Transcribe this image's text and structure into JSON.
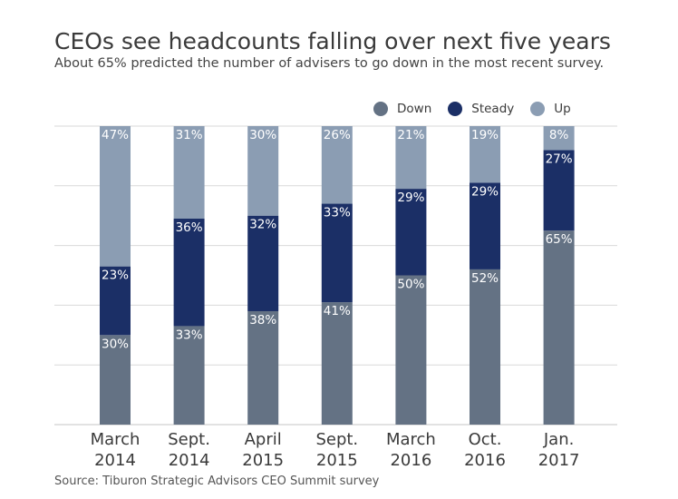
{
  "title": "CEOs see headcounts falling over next five years",
  "subtitle": "About 65% predicted the number of advisers to go down in the most recent survey.",
  "source": "Source: Tiburon Strategic Advisors CEO Summit survey",
  "colors": {
    "Down": "#647284",
    "Steady": "#1b2f66",
    "Up": "#8b9db3",
    "grid": "#d9d9d9"
  },
  "legend": [
    {
      "name": "Down",
      "color": "#647284"
    },
    {
      "name": "Steady",
      "color": "#1b2f66"
    },
    {
      "name": "Up",
      "color": "#8b9db3"
    }
  ],
  "chart_data": {
    "type": "bar",
    "stacked": true,
    "orientation": "vertical",
    "categories": [
      [
        "March",
        "2014"
      ],
      [
        "Sept.",
        "2014"
      ],
      [
        "April",
        "2015"
      ],
      [
        "Sept.",
        "2015"
      ],
      [
        "March",
        "2016"
      ],
      [
        "Oct.",
        "2016"
      ],
      [
        "Jan.",
        "2017"
      ]
    ],
    "series": [
      {
        "name": "Down",
        "values": [
          30,
          33,
          38,
          41,
          50,
          52,
          65
        ]
      },
      {
        "name": "Steady",
        "values": [
          23,
          36,
          32,
          33,
          29,
          29,
          27
        ]
      },
      {
        "name": "Up",
        "values": [
          47,
          31,
          30,
          26,
          21,
          19,
          8
        ]
      }
    ],
    "data_labels": [
      [
        "30%",
        "33%",
        "38%",
        "41%",
        "50%",
        "52%",
        "65%"
      ],
      [
        "23%",
        "36%",
        "32%",
        "33%",
        "29%",
        "29%",
        "27%"
      ],
      [
        "47%",
        "31%",
        "30%",
        "26%",
        "21%",
        "19%",
        "8%"
      ]
    ],
    "ylim": [
      0,
      100
    ],
    "grid": true,
    "legend_position": "top-right"
  }
}
